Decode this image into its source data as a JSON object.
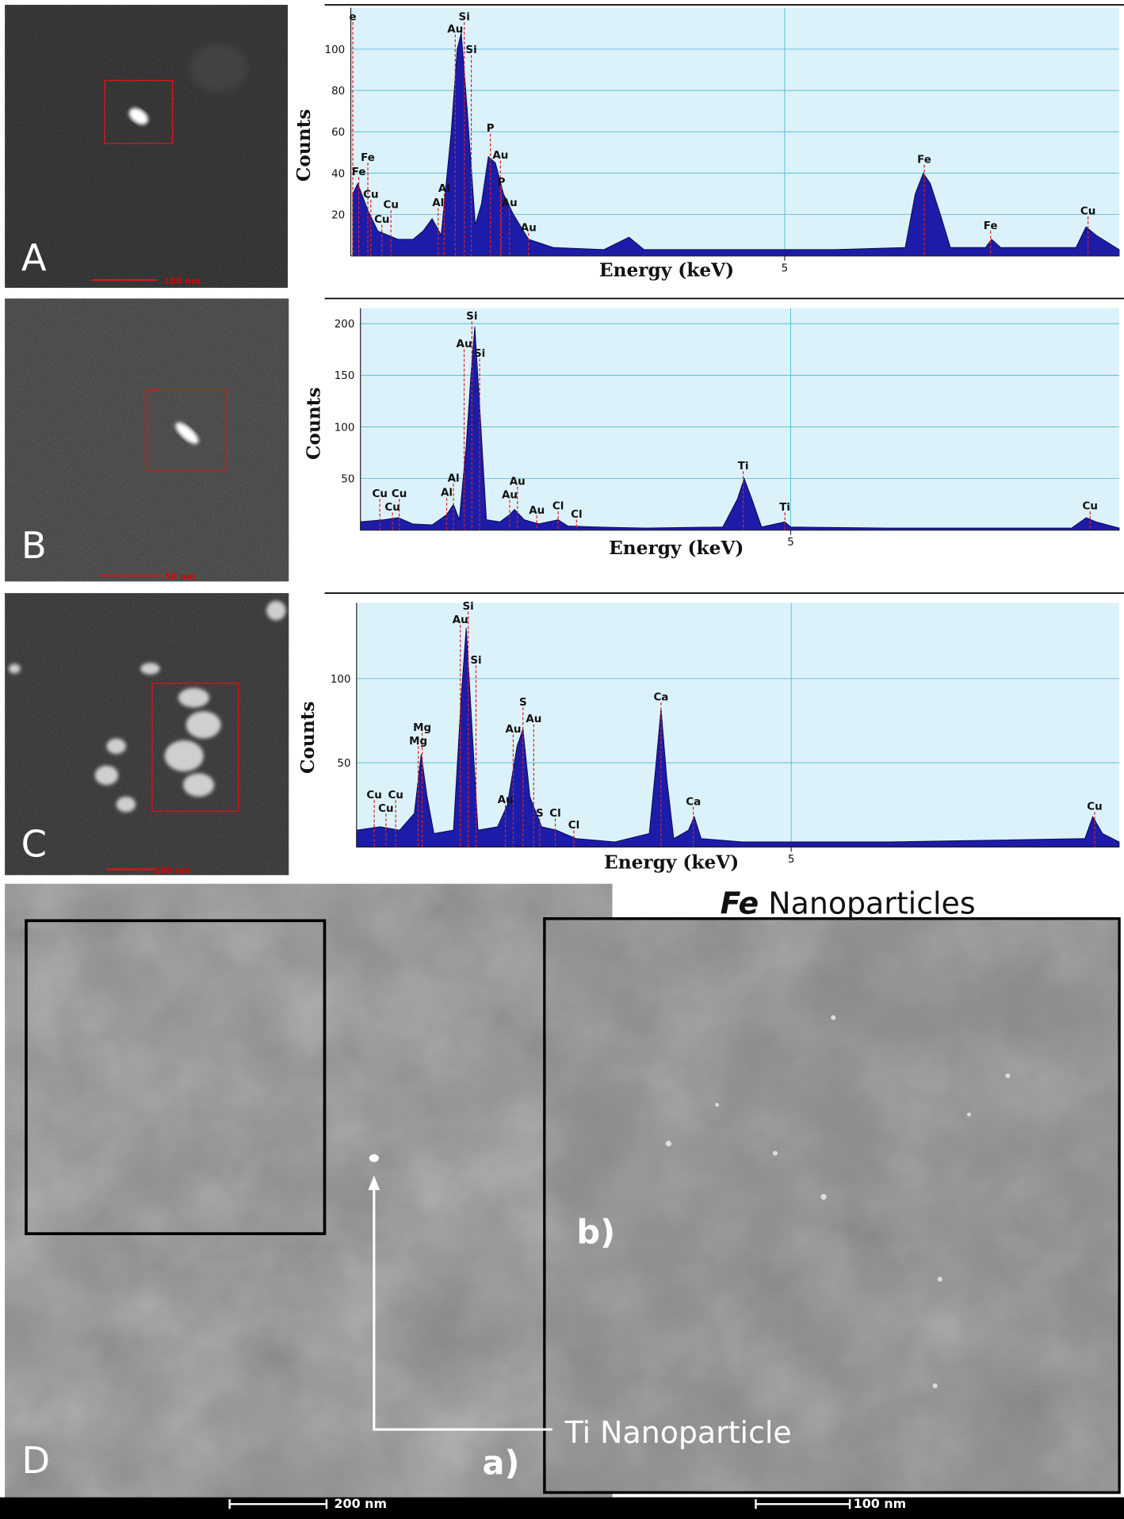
{
  "chart_data": [
    {
      "type": "area",
      "color": "#1c1ca8",
      "peak_color": "#e02020",
      "grid": true,
      "x_label": "Energy (keV)",
      "y_label": "Counts",
      "xlim": [
        0.68,
        8.33
      ],
      "ylim": [
        0,
        120
      ],
      "xticks": [
        5
      ],
      "yticks": [
        20,
        40,
        60,
        80,
        100
      ],
      "x": [
        0.7,
        0.75,
        0.85,
        0.95,
        1.05,
        1.15,
        1.3,
        1.4,
        1.49,
        1.58,
        1.68,
        1.74,
        1.78,
        1.84,
        1.92,
        1.98,
        2.05,
        2.12,
        2.2,
        2.3,
        2.45,
        2.7,
        3.2,
        3.45,
        3.6,
        4.5,
        5.5,
        6.2,
        6.3,
        6.38,
        6.45,
        6.55,
        6.65,
        7.0,
        7.06,
        7.15,
        7.9,
        8.0,
        8.1,
        8.33
      ],
      "values": [
        30,
        35,
        22,
        12,
        10,
        8,
        8,
        12,
        18,
        10,
        60,
        100,
        108,
        70,
        15,
        25,
        48,
        45,
        30,
        20,
        8,
        4,
        3,
        9,
        3,
        3,
        3,
        4,
        30,
        40,
        35,
        20,
        4,
        4,
        8,
        4,
        4,
        14,
        10,
        3
      ],
      "peak_labels": [
        {
          "label": "e",
          "x": 0.7,
          "y": 114
        },
        {
          "label": "Fe",
          "x": 0.76,
          "y": 39
        },
        {
          "label": "Fe",
          "x": 0.85,
          "y": 46
        },
        {
          "label": "Cu",
          "x": 0.88,
          "y": 28
        },
        {
          "label": "Cu",
          "x": 0.99,
          "y": 16
        },
        {
          "label": "Cu",
          "x": 1.08,
          "y": 23
        },
        {
          "label": "Al",
          "x": 1.55,
          "y": 24
        },
        {
          "label": "Al",
          "x": 1.61,
          "y": 31
        },
        {
          "label": "Au",
          "x": 1.72,
          "y": 108
        },
        {
          "label": "Si",
          "x": 1.81,
          "y": 114
        },
        {
          "label": "Si",
          "x": 1.88,
          "y": 98
        },
        {
          "label": "P",
          "x": 2.07,
          "y": 60
        },
        {
          "label": "Au",
          "x": 2.17,
          "y": 47
        },
        {
          "label": "P",
          "x": 2.18,
          "y": 34
        },
        {
          "label": "Au",
          "x": 2.26,
          "y": 24
        },
        {
          "label": "Au",
          "x": 2.45,
          "y": 12
        },
        {
          "label": "Fe",
          "x": 6.39,
          "y": 45
        },
        {
          "label": "Fe",
          "x": 7.05,
          "y": 13
        },
        {
          "label": "Cu",
          "x": 8.02,
          "y": 20
        }
      ]
    },
    {
      "type": "area",
      "color": "#1c1ca8",
      "peak_color": "#e02020",
      "grid": true,
      "x_label": "Energy (keV)",
      "y_label": "Counts",
      "xlim": [
        0.56,
        8.39
      ],
      "ylim": [
        0,
        215
      ],
      "xticks": [
        5
      ],
      "yticks": [
        50,
        100,
        150,
        200
      ],
      "x": [
        0.56,
        0.8,
        0.95,
        1.1,
        1.3,
        1.45,
        1.52,
        1.58,
        1.65,
        1.7,
        1.74,
        1.79,
        1.86,
        2.0,
        2.1,
        2.15,
        2.25,
        2.4,
        2.6,
        2.7,
        3.0,
        3.5,
        4.3,
        4.45,
        4.52,
        4.6,
        4.7,
        4.94,
        5.0,
        6.0,
        7.9,
        8.05,
        8.15,
        8.39
      ],
      "values": [
        8,
        10,
        12,
        6,
        5,
        15,
        25,
        10,
        80,
        150,
        197,
        120,
        10,
        8,
        15,
        20,
        10,
        6,
        10,
        4,
        3,
        2,
        3,
        30,
        50,
        30,
        3,
        8,
        3,
        2,
        2,
        12,
        8,
        2
      ],
      "peak_labels": [
        {
          "label": "Cu",
          "x": 0.76,
          "y": 32
        },
        {
          "label": "Cu",
          "x": 0.89,
          "y": 19
        },
        {
          "label": "Cu",
          "x": 0.96,
          "y": 32
        },
        {
          "label": "Al",
          "x": 1.45,
          "y": 33
        },
        {
          "label": "Al",
          "x": 1.52,
          "y": 47
        },
        {
          "label": "Au",
          "x": 1.63,
          "y": 177
        },
        {
          "label": "Si",
          "x": 1.71,
          "y": 204
        },
        {
          "label": "Si",
          "x": 1.79,
          "y": 168
        },
        {
          "label": "Au",
          "x": 2.1,
          "y": 31
        },
        {
          "label": "Au",
          "x": 2.18,
          "y": 44
        },
        {
          "label": "Au",
          "x": 2.38,
          "y": 16
        },
        {
          "label": "Cl",
          "x": 2.6,
          "y": 20
        },
        {
          "label": "Cl",
          "x": 2.79,
          "y": 12
        },
        {
          "label": "Ti",
          "x": 4.51,
          "y": 59
        },
        {
          "label": "Ti",
          "x": 4.94,
          "y": 19
        },
        {
          "label": "Cu",
          "x": 8.09,
          "y": 20
        }
      ]
    },
    {
      "type": "area",
      "color": "#1c1ca8",
      "peak_color": "#e02020",
      "grid": true,
      "x_label": "Energy (keV)",
      "y_label": "Counts",
      "xlim": [
        0.56,
        8.35
      ],
      "ylim": [
        0,
        145
      ],
      "xticks": [
        5
      ],
      "yticks": [
        50,
        100
      ],
      "x": [
        0.56,
        0.8,
        1.0,
        1.15,
        1.22,
        1.28,
        1.35,
        1.55,
        1.63,
        1.68,
        1.73,
        1.8,
        2.0,
        2.1,
        2.2,
        2.26,
        2.33,
        2.45,
        2.6,
        2.8,
        3.2,
        3.55,
        3.62,
        3.67,
        3.73,
        3.8,
        3.95,
        4.01,
        4.08,
        4.5,
        6.0,
        8.0,
        8.08,
        8.18,
        8.35
      ],
      "values": [
        10,
        12,
        10,
        20,
        55,
        30,
        8,
        10,
        90,
        130,
        80,
        10,
        12,
        25,
        60,
        70,
        30,
        12,
        10,
        5,
        3,
        8,
        50,
        82,
        40,
        5,
        10,
        18,
        5,
        3,
        3,
        5,
        18,
        8,
        3
      ],
      "peak_labels": [
        {
          "label": "Cu",
          "x": 0.74,
          "y": 29
        },
        {
          "label": "Cu",
          "x": 0.86,
          "y": 21
        },
        {
          "label": "Cu",
          "x": 0.96,
          "y": 29
        },
        {
          "label": "Mg",
          "x": 1.23,
          "y": 69
        },
        {
          "label": "Mg",
          "x": 1.19,
          "y": 61
        },
        {
          "label": "Au",
          "x": 1.62,
          "y": 133
        },
        {
          "label": "Si",
          "x": 1.7,
          "y": 141
        },
        {
          "label": "Si",
          "x": 1.78,
          "y": 109
        },
        {
          "label": "Au",
          "x": 2.08,
          "y": 26
        },
        {
          "label": "Au",
          "x": 2.16,
          "y": 68
        },
        {
          "label": "S",
          "x": 2.26,
          "y": 84
        },
        {
          "label": "Au",
          "x": 2.37,
          "y": 74
        },
        {
          "label": "S",
          "x": 2.43,
          "y": 18
        },
        {
          "label": "Cl",
          "x": 2.59,
          "y": 18
        },
        {
          "label": "Cl",
          "x": 2.78,
          "y": 11
        },
        {
          "label": "Ca",
          "x": 3.67,
          "y": 87
        },
        {
          "label": "Ca",
          "x": 4.0,
          "y": 25
        },
        {
          "label": "Cu",
          "x": 8.1,
          "y": 22
        }
      ]
    }
  ],
  "images": [
    {
      "letter": "A",
      "scale_label": "100 nm"
    },
    {
      "letter": "B",
      "scale_label": "50 nm"
    },
    {
      "letter": "C",
      "scale_label": "100 nm"
    }
  ],
  "panel_d": {
    "letter": "D",
    "sub_a": "a)",
    "sub_b": "b)",
    "title_element": "Fe",
    "title_rest": "Nanoparticles",
    "annotation": "Ti Nanoparticle",
    "scale_a": "200 nm",
    "scale_b": "100 nm"
  }
}
